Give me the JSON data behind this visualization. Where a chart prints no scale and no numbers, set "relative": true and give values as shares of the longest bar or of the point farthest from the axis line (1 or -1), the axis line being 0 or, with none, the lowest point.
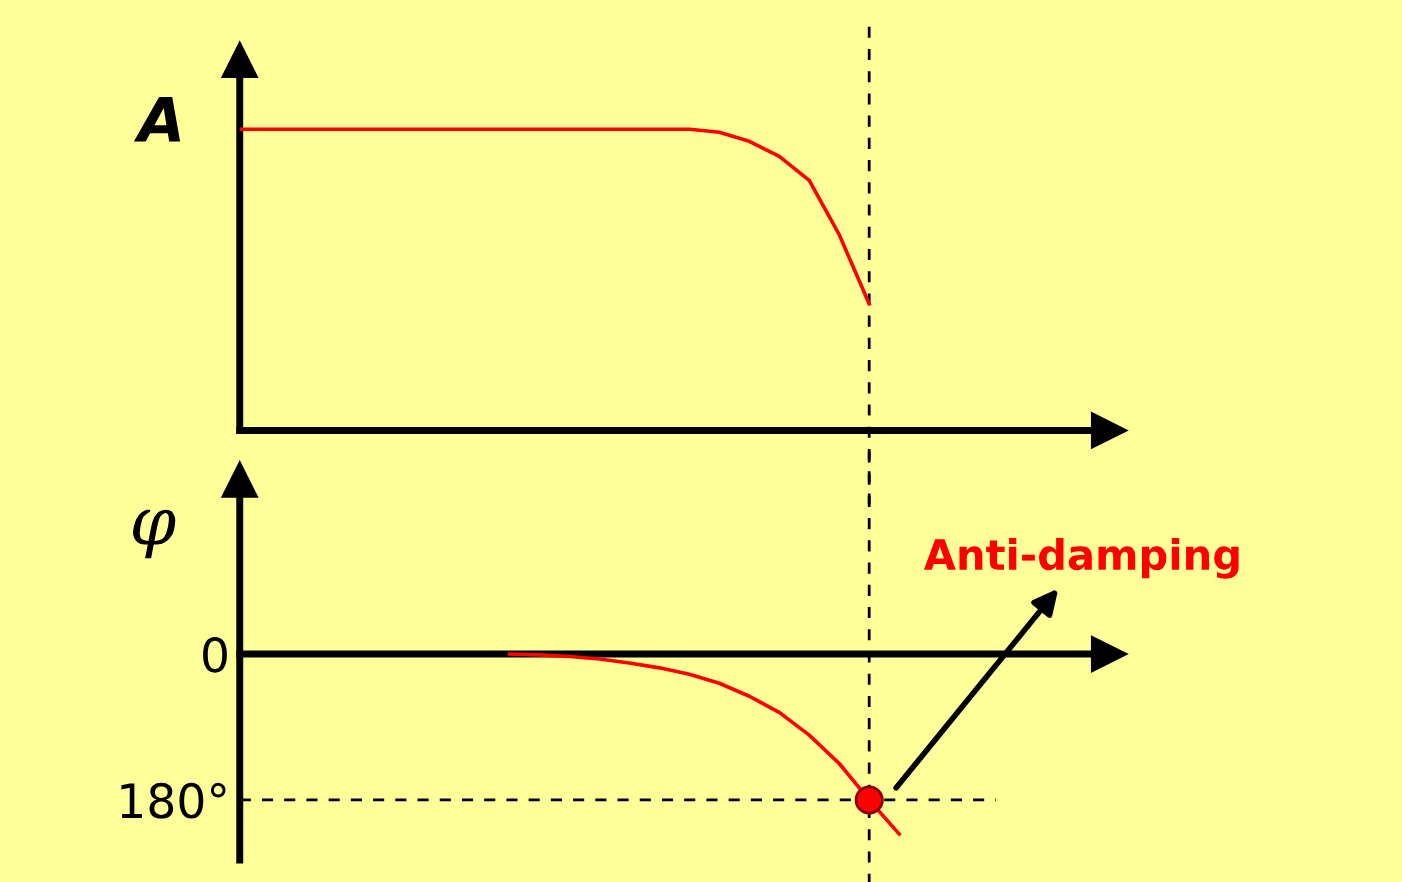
{
  "chart_data": [
    {
      "type": "line",
      "ylabel": "A",
      "relative": true,
      "tick_labels": false,
      "grid": false,
      "categories": [
        null,
        null,
        null,
        null,
        null,
        null,
        null,
        null,
        null,
        null,
        null,
        null,
        null,
        null,
        null,
        null,
        null,
        null,
        null,
        null,
        null,
        null,
        null,
        null,
        null,
        null,
        null,
        null,
        null,
        null
      ],
      "series": [
        {
          "color": "#ff0000",
          "values": [
            1,
            1,
            1,
            1,
            1,
            1,
            1,
            1,
            1,
            1,
            1,
            1,
            1,
            1,
            1,
            1,
            0.99,
            0.96,
            0.91,
            0.83,
            0.65,
            0.42,
            null,
            null,
            null,
            null,
            null,
            null,
            null,
            null
          ]
        }
      ]
    },
    {
      "type": "line",
      "ylabel": "φ",
      "tick_labels": "y",
      "grid": false,
      "categories": [
        null,
        null,
        null,
        null,
        null,
        null,
        null,
        null,
        null,
        null,
        null,
        null,
        null,
        null,
        null,
        null,
        null,
        null,
        null,
        null,
        null,
        null,
        null,
        null,
        null,
        null,
        null,
        null,
        null,
        null
      ],
      "ylim": [
        -254,
        215
      ],
      "yticks": [
        {
          "value": 0,
          "label": "0"
        },
        {
          "value": -180,
          "label": "180°"
        }
      ],
      "series": [
        {
          "color": "#ff0000",
          "values": [
            null,
            null,
            null,
            null,
            null,
            null,
            null,
            null,
            null,
            0,
            -1,
            -3,
            -6,
            -11,
            -17,
            -25,
            -36,
            -52,
            -72,
            -100,
            -135,
            -180,
            -222,
            null,
            null,
            null,
            null,
            null,
            null,
            null
          ]
        },
        {
          "type": "scatter",
          "color": "#ff0000",
          "marker": "circle",
          "values": [
            null,
            null,
            null,
            null,
            null,
            null,
            null,
            null,
            null,
            null,
            null,
            null,
            null,
            null,
            null,
            null,
            null,
            null,
            null,
            null,
            null,
            -180,
            null,
            null,
            null,
            null,
            null,
            null,
            null,
            null
          ]
        }
      ],
      "ref_lines": [
        {
          "axis": "y",
          "value": -180,
          "color": "#000000",
          "line_style": "dashed"
        }
      ],
      "annotations": [
        "Anti-damping"
      ]
    }
  ]
}
